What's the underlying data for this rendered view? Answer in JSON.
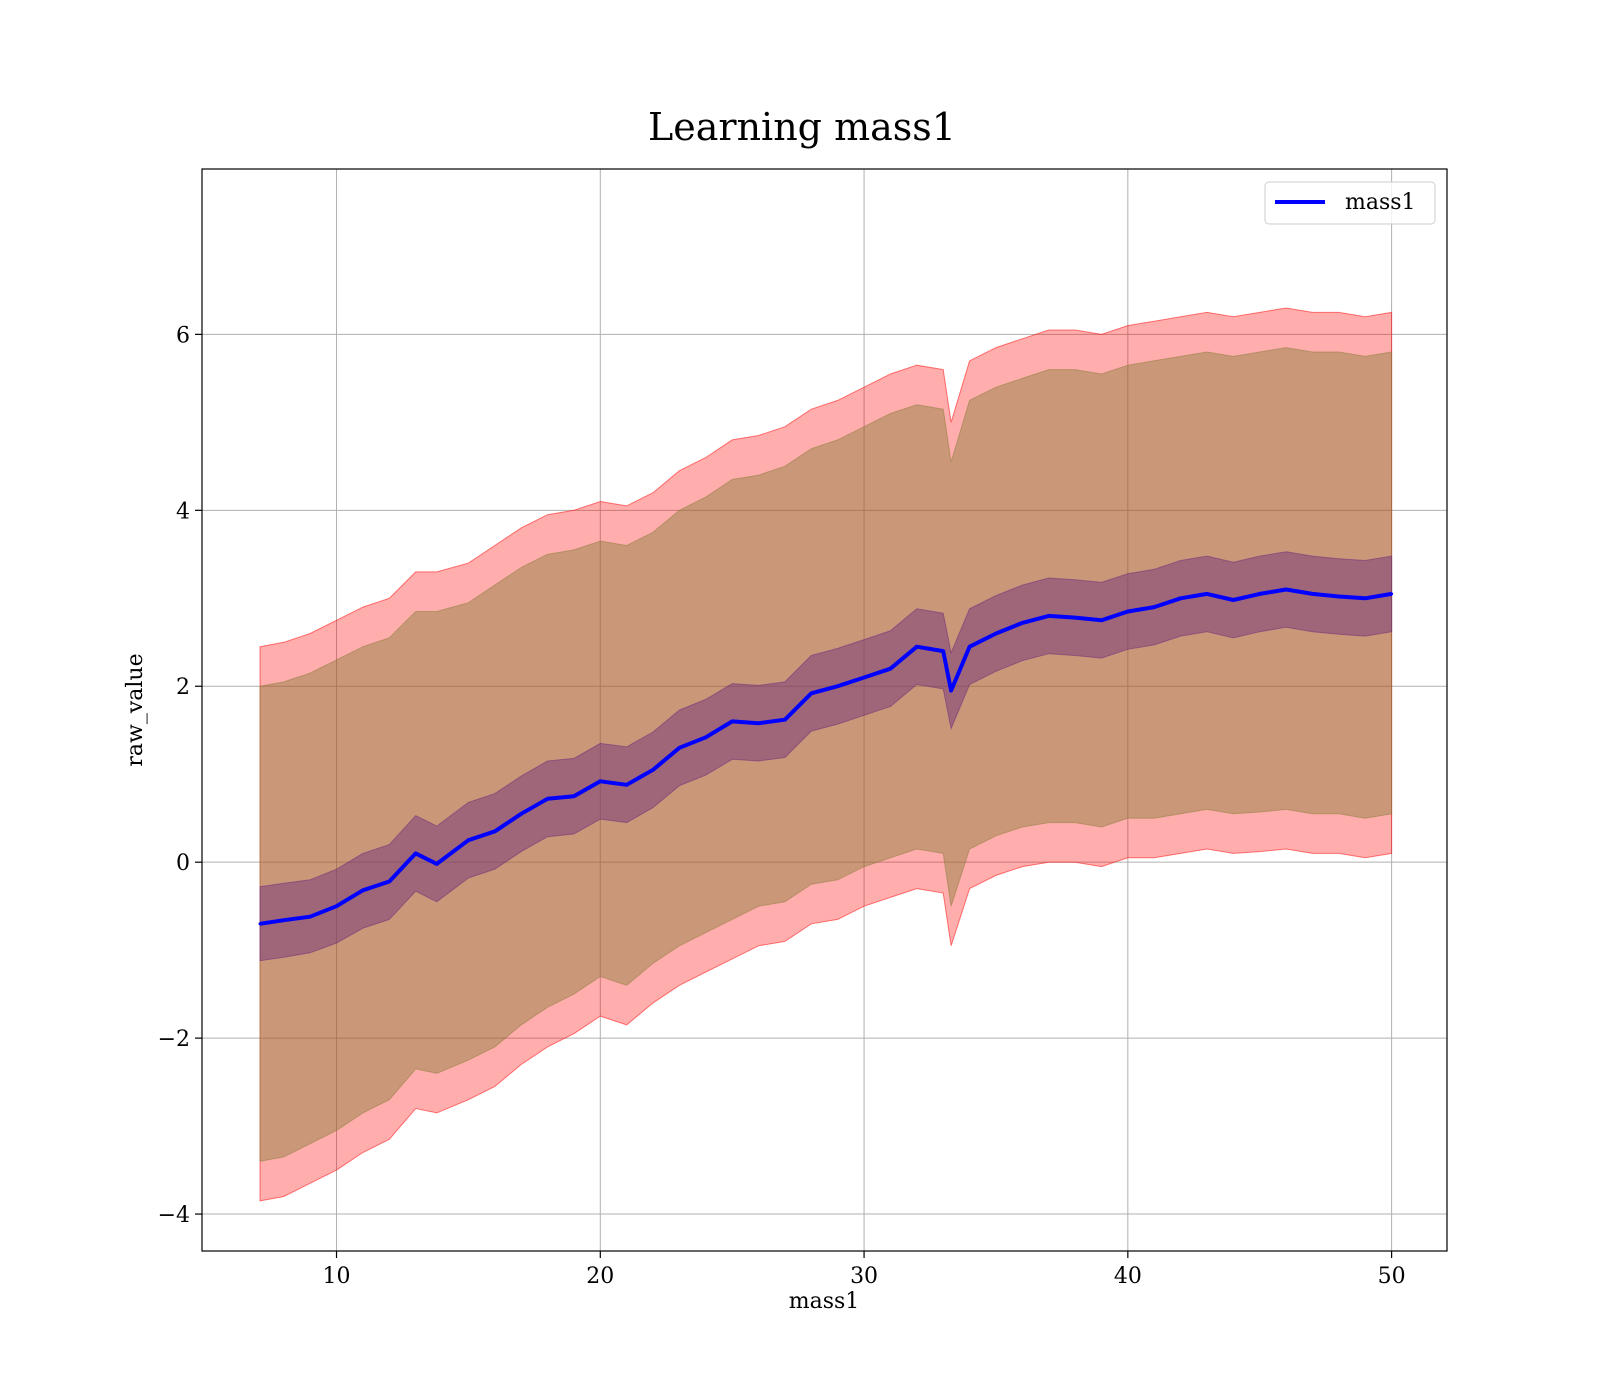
{
  "chart_data": {
    "type": "line",
    "title": "Learning mass1",
    "xlabel": "mass1",
    "ylabel": "raw_value",
    "xlim": [
      4.9,
      52.1
    ],
    "ylim": [
      -4.42,
      7.88
    ],
    "xticks": [
      10,
      20,
      30,
      40,
      50
    ],
    "yticks": [
      -4,
      -2,
      0,
      2,
      4,
      6
    ],
    "ytick_labels": [
      "−4",
      "−2",
      "0",
      "2",
      "4",
      "6"
    ],
    "grid": true,
    "legend_position": "upper right",
    "colors": {
      "mean_line": "#0000ff",
      "band_outer": "#ff0000",
      "band_middle": "#8b7d3a",
      "band_inner": "#6a2a7a",
      "grid": "#b0b0b0"
    },
    "x": [
      7.1,
      8,
      9,
      10,
      11,
      12,
      13,
      13.8,
      15,
      16,
      17,
      18,
      19,
      20,
      21,
      22,
      23,
      24,
      25,
      26,
      27,
      28,
      29,
      30,
      31,
      32,
      33,
      33.3,
      34,
      35,
      36,
      37,
      38,
      39,
      40,
      41,
      42,
      43,
      44,
      45,
      46,
      47,
      48,
      49,
      50
    ],
    "series": [
      {
        "name": "mass1",
        "role": "mean",
        "values": [
          -0.7,
          -0.66,
          -0.62,
          -0.5,
          -0.32,
          -0.22,
          0.1,
          -0.02,
          0.25,
          0.35,
          0.55,
          0.72,
          0.75,
          0.92,
          0.88,
          1.05,
          1.3,
          1.42,
          1.6,
          1.58,
          1.62,
          1.92,
          2.0,
          2.1,
          2.2,
          2.45,
          2.4,
          1.95,
          2.45,
          2.6,
          2.72,
          2.8,
          2.78,
          2.75,
          2.85,
          2.9,
          3.0,
          3.05,
          2.98,
          3.05,
          3.1,
          3.05,
          3.02,
          3.0,
          3.05
        ]
      }
    ],
    "bands": [
      {
        "role": "outer",
        "lower": [
          -3.85,
          -3.8,
          -3.65,
          -3.5,
          -3.3,
          -3.15,
          -2.8,
          -2.85,
          -2.7,
          -2.55,
          -2.3,
          -2.1,
          -1.95,
          -1.75,
          -1.85,
          -1.6,
          -1.4,
          -1.25,
          -1.1,
          -0.95,
          -0.9,
          -0.7,
          -0.65,
          -0.5,
          -0.4,
          -0.3,
          -0.35,
          -0.95,
          -0.3,
          -0.15,
          -0.05,
          0.0,
          0.0,
          -0.05,
          0.05,
          0.05,
          0.1,
          0.15,
          0.1,
          0.12,
          0.15,
          0.1,
          0.1,
          0.05,
          0.1
        ],
        "upper": [
          2.45,
          2.5,
          2.6,
          2.75,
          2.9,
          3.0,
          3.3,
          3.3,
          3.4,
          3.6,
          3.8,
          3.95,
          4.0,
          4.1,
          4.05,
          4.2,
          4.45,
          4.6,
          4.8,
          4.85,
          4.95,
          5.15,
          5.25,
          5.4,
          5.55,
          5.65,
          5.6,
          5.0,
          5.7,
          5.85,
          5.95,
          6.05,
          6.05,
          6.0,
          6.1,
          6.15,
          6.2,
          6.25,
          6.2,
          6.25,
          6.3,
          6.25,
          6.25,
          6.2,
          6.25
        ]
      },
      {
        "role": "middle",
        "lower": [
          -3.4,
          -3.35,
          -3.2,
          -3.05,
          -2.85,
          -2.7,
          -2.35,
          -2.4,
          -2.25,
          -2.1,
          -1.85,
          -1.65,
          -1.5,
          -1.3,
          -1.4,
          -1.15,
          -0.95,
          -0.8,
          -0.65,
          -0.5,
          -0.45,
          -0.25,
          -0.2,
          -0.05,
          0.05,
          0.15,
          0.1,
          -0.5,
          0.15,
          0.3,
          0.4,
          0.45,
          0.45,
          0.4,
          0.5,
          0.5,
          0.55,
          0.6,
          0.55,
          0.57,
          0.6,
          0.55,
          0.55,
          0.5,
          0.55
        ],
        "upper": [
          2.0,
          2.05,
          2.15,
          2.3,
          2.45,
          2.55,
          2.85,
          2.85,
          2.95,
          3.15,
          3.35,
          3.5,
          3.55,
          3.65,
          3.6,
          3.75,
          4.0,
          4.15,
          4.35,
          4.4,
          4.5,
          4.7,
          4.8,
          4.95,
          5.1,
          5.2,
          5.15,
          4.55,
          5.25,
          5.4,
          5.5,
          5.6,
          5.6,
          5.55,
          5.65,
          5.7,
          5.75,
          5.8,
          5.75,
          5.8,
          5.85,
          5.8,
          5.8,
          5.75,
          5.8
        ]
      },
      {
        "role": "inner",
        "lower": [
          -1.12,
          -1.08,
          -1.03,
          -0.92,
          -0.75,
          -0.65,
          -0.33,
          -0.45,
          -0.18,
          -0.08,
          0.12,
          0.29,
          0.32,
          0.49,
          0.45,
          0.62,
          0.87,
          0.99,
          1.17,
          1.15,
          1.19,
          1.49,
          1.57,
          1.67,
          1.77,
          2.02,
          1.97,
          1.52,
          2.02,
          2.17,
          2.29,
          2.37,
          2.35,
          2.32,
          2.42,
          2.47,
          2.57,
          2.62,
          2.55,
          2.62,
          2.67,
          2.62,
          2.59,
          2.57,
          2.62
        ],
        "upper": [
          -0.28,
          -0.24,
          -0.2,
          -0.08,
          0.1,
          0.2,
          0.53,
          0.41,
          0.68,
          0.78,
          0.98,
          1.15,
          1.18,
          1.35,
          1.31,
          1.48,
          1.73,
          1.85,
          2.03,
          2.01,
          2.05,
          2.35,
          2.43,
          2.53,
          2.63,
          2.88,
          2.83,
          2.38,
          2.88,
          3.03,
          3.15,
          3.23,
          3.21,
          3.18,
          3.28,
          3.33,
          3.43,
          3.48,
          3.41,
          3.48,
          3.53,
          3.48,
          3.45,
          3.43,
          3.48
        ]
      }
    ]
  }
}
